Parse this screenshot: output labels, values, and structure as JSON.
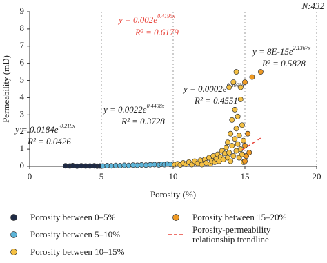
{
  "chart_data": {
    "type": "scatter",
    "note_top_right": "N:432",
    "x_label": "Porosity (%)",
    "y_label": "Permeability (mD)",
    "xlim": [
      0,
      20
    ],
    "xticks": [
      0,
      5,
      10,
      15,
      20
    ],
    "ylim": [
      0,
      9
    ],
    "yticks": [
      0,
      1,
      2,
      3,
      4,
      5,
      6,
      7,
      8,
      9
    ],
    "grid": "x",
    "series": [
      {
        "name": "Porosity between 0–5%",
        "color": "#1e2a45",
        "x": [
          2.5,
          2.8,
          3.0,
          3.3,
          3.6,
          3.9,
          4.2,
          4.5,
          4.7,
          4.9
        ],
        "values": [
          0.03,
          0.02,
          0.04,
          0.01,
          0.03,
          0.02,
          0.02,
          0.03,
          0.01,
          0.02
        ]
      },
      {
        "name": "Porosity between 5–10%",
        "color": "#5db4d8",
        "x": [
          5.1,
          5.4,
          5.7,
          6.0,
          6.3,
          6.6,
          6.9,
          7.2,
          7.5,
          7.8,
          8.1,
          8.4,
          8.7,
          9.0,
          9.2,
          9.4,
          9.6,
          9.8
        ],
        "values": [
          0.02,
          0.04,
          0.03,
          0.05,
          0.04,
          0.06,
          0.05,
          0.07,
          0.06,
          0.08,
          0.07,
          0.09,
          0.1,
          0.08,
          0.12,
          0.1,
          0.14,
          0.11
        ]
      },
      {
        "name": "Porosity between 10–15%",
        "color": "#f4c044",
        "x": [
          10.1,
          10.3,
          10.5,
          10.7,
          10.9,
          11.1,
          11.3,
          11.5,
          11.7,
          11.9,
          12.0,
          12.2,
          12.3,
          12.5,
          12.6,
          12.7,
          12.8,
          12.9,
          13.0,
          13.1,
          13.2,
          13.3,
          13.4,
          13.5,
          13.6,
          13.7,
          13.8,
          13.8,
          13.9,
          13.9,
          14.0,
          14.0,
          14.1,
          14.1,
          14.2,
          14.2,
          14.3,
          14.3,
          14.4,
          14.4,
          14.4,
          14.5,
          14.5,
          14.6,
          14.6,
          14.7,
          14.7,
          14.7,
          14.8,
          14.8,
          14.9,
          14.9
        ],
        "values": [
          0.1,
          0.15,
          0.08,
          0.2,
          0.12,
          0.25,
          0.1,
          0.3,
          0.18,
          0.35,
          0.1,
          0.4,
          0.2,
          0.5,
          0.15,
          0.3,
          0.6,
          0.25,
          0.45,
          0.7,
          0.3,
          0.55,
          0.9,
          0.4,
          0.75,
          1.1,
          0.5,
          1.4,
          0.8,
          4.6,
          0.3,
          1.9,
          1.2,
          2.7,
          0.6,
          4.9,
          1.6,
          3.3,
          0.9,
          5.5,
          2.2,
          1.3,
          2.9,
          0.5,
          1.8,
          4.6,
          1.0,
          3.9,
          2.4,
          0.7,
          1.5,
          0.25
        ]
      },
      {
        "name": "Porosity between 15–20%",
        "color": "#ef9a24",
        "x": [
          15.0,
          15.0,
          15.1,
          15.2,
          15.3,
          15.0,
          15.5,
          16.1
        ],
        "values": [
          0.3,
          1.2,
          0.6,
          1.9,
          0.8,
          4.9,
          5.2,
          5.5
        ]
      },
      {
        "name": "Porosity-permeability relationship trendline",
        "color": "#e8453c",
        "line": "dashed",
        "x": [
          14.8,
          16.2
        ],
        "values": [
          0.95,
          1.7
        ]
      }
    ],
    "annotations": [
      {
        "text": "y = 0.002e",
        "exponent": "0.4195x",
        "r2": "R² = 0.6179",
        "color": "#e8453c"
      },
      {
        "text": "y = 8E-15e",
        "exponent": "2.1367x",
        "r2": "R² = 0.5828",
        "color": "#222222"
      },
      {
        "text": "y = 0.0002e",
        "exponent": "0.5993x",
        "r2": "R² = 0.4551",
        "color": "#222222"
      },
      {
        "text": "y = 0.0022e",
        "exponent": "0.4408x",
        "r2": "R² = 0.3728",
        "color": "#222222"
      },
      {
        "text": "y = 0.0184e",
        "exponent": "-0.219x",
        "r2": "R² = 0.0426",
        "color": "#222222"
      }
    ]
  }
}
